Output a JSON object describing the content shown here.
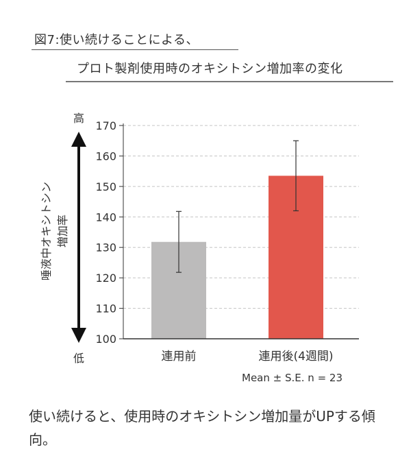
{
  "title": {
    "line1": "図7:使い続けることによる、",
    "line2": "プロト製剤使用時のオキシトシン増加率の変化"
  },
  "chart_data": {
    "type": "bar",
    "categories": [
      "連用前",
      "連用後(4週間)"
    ],
    "series": [
      {
        "values": [
          131.8,
          153.5
        ],
        "errors": [
          10.0,
          11.5
        ],
        "colors": [
          "#bcbbbb",
          "#e2574c"
        ]
      }
    ],
    "ylim": [
      100,
      170
    ],
    "yticks": [
      "100",
      "110",
      "120",
      "130",
      "140",
      "150",
      "160",
      "170"
    ],
    "ylabel": "唾液中オキシトシン\n増加率",
    "arrow_top_label": "高",
    "arrow_bottom_label": "低",
    "grid": "dashed horizontal",
    "note": "Mean ± S.E. n = 23"
  },
  "caption": "使い続けると、使用時のオキシトシン増加量がUPする傾向。"
}
